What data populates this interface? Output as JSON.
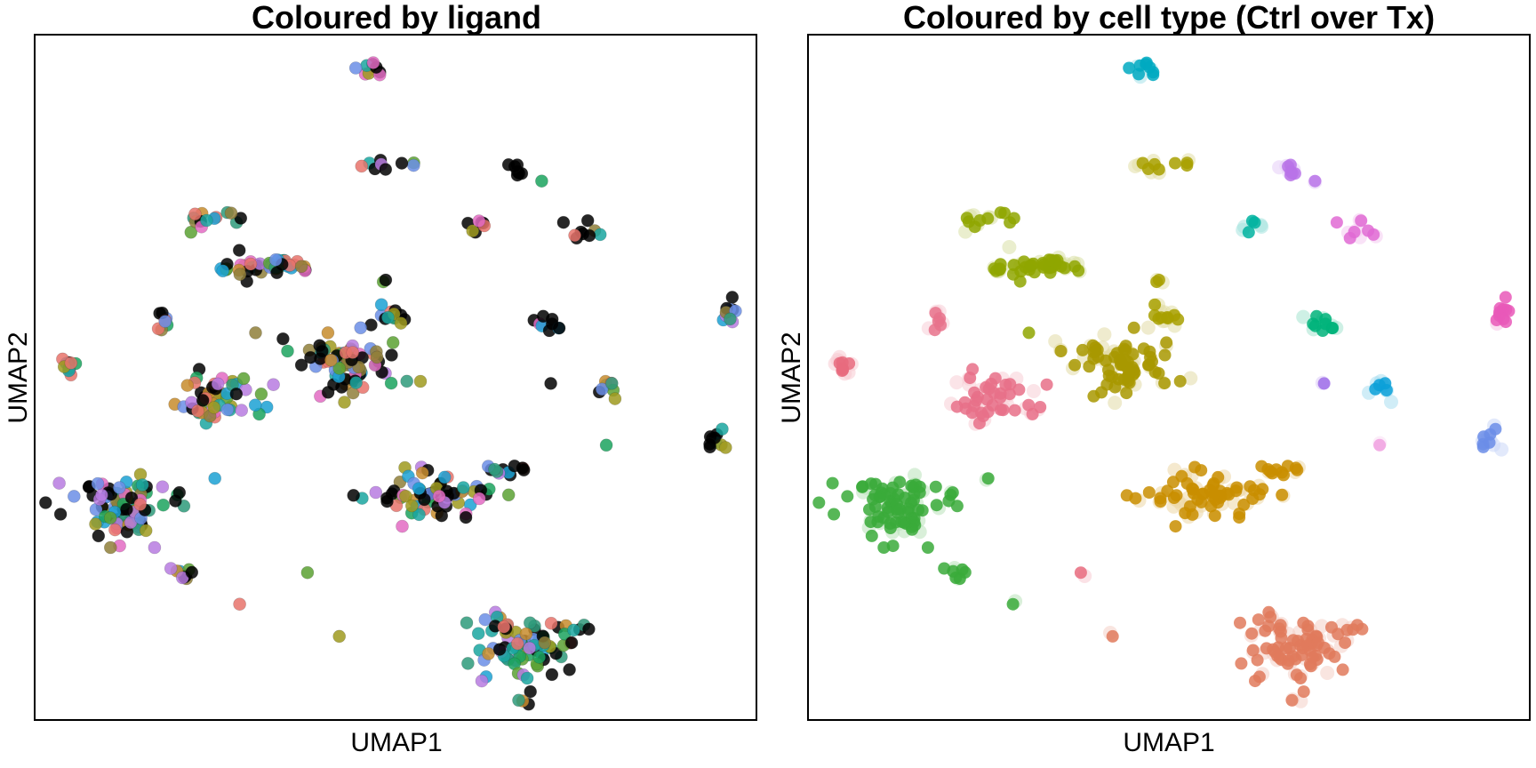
{
  "chart_data": [
    {
      "type": "scatter",
      "title": "Coloured by ligand",
      "xlabel": "UMAP1",
      "ylabel": "UMAP2",
      "xlim": [
        0,
        100
      ],
      "ylim": [
        0,
        100
      ],
      "grid": false,
      "legend": "none",
      "ticks": false,
      "palette": [
        "#e8736b",
        "#c78c2d",
        "#9f9a1f",
        "#5aa132",
        "#1ba35e",
        "#1aa6a0",
        "#1ba1d4",
        "#6b8ee6",
        "#b77be0",
        "#e36bc3",
        "#000000",
        "#8f7f3a",
        "#2e9a7a",
        "#cd7a8f"
      ],
      "clusters": [
        {
          "x": 46.3,
          "y": 95.1,
          "n": 10,
          "sx": 1.3,
          "sy": 0.7,
          "dark": 0.5
        },
        {
          "x": 49.0,
          "y": 81.0,
          "n": 9,
          "sx": 2.2,
          "sy": 0.4,
          "dark": 0.5
        },
        {
          "x": 67.1,
          "y": 80.0,
          "n": 8,
          "sx": 1.0,
          "sy": 0.7,
          "dark": 0.7
        },
        {
          "x": 61.4,
          "y": 71.9,
          "n": 7,
          "sx": 1.2,
          "sy": 0.8,
          "dark": 0.4
        },
        {
          "x": 75.4,
          "y": 71.5,
          "n": 9,
          "sx": 1.4,
          "sy": 0.6,
          "dark": 0.6
        },
        {
          "x": 23.9,
          "y": 73.0,
          "n": 14,
          "sx": 2.0,
          "sy": 0.8,
          "dark": 0.15
        },
        {
          "x": 32.3,
          "y": 66.2,
          "n": 45,
          "sx": 3.2,
          "sy": 0.8,
          "dark": 0.15
        },
        {
          "x": 48.6,
          "y": 64.1,
          "n": 2,
          "sx": 0.1,
          "sy": 0.1,
          "dark": 0.5
        },
        {
          "x": 49.4,
          "y": 59.2,
          "n": 12,
          "sx": 1.0,
          "sy": 0.8,
          "dark": 0.15
        },
        {
          "x": 17.6,
          "y": 58.2,
          "n": 8,
          "sx": 0.5,
          "sy": 1.0,
          "dark": 0.1
        },
        {
          "x": 30.6,
          "y": 56.5,
          "n": 1,
          "sx": 0.1,
          "sy": 0.1,
          "dark": 0.0
        },
        {
          "x": 71.2,
          "y": 57.5,
          "n": 9,
          "sx": 1.0,
          "sy": 0.8,
          "dark": 0.5
        },
        {
          "x": 96.3,
          "y": 59.3,
          "n": 10,
          "sx": 0.7,
          "sy": 0.8,
          "dark": 0.4
        },
        {
          "x": 4.4,
          "y": 51.6,
          "n": 10,
          "sx": 0.6,
          "sy": 0.9,
          "dark": 0.1
        },
        {
          "x": 44.1,
          "y": 51.9,
          "n": 80,
          "sx": 3.5,
          "sy": 2.4,
          "dark": 0.15
        },
        {
          "x": 25.5,
          "y": 47.0,
          "n": 50,
          "sx": 3.0,
          "sy": 1.8,
          "dark": 0.12
        },
        {
          "x": 71.5,
          "y": 49.1,
          "n": 1,
          "sx": 0.1,
          "sy": 0.1,
          "dark": 1.0
        },
        {
          "x": 79.6,
          "y": 48.8,
          "n": 8,
          "sx": 0.8,
          "sy": 1.0,
          "dark": 0.4
        },
        {
          "x": 79.2,
          "y": 40.1,
          "n": 1,
          "sx": 0.1,
          "sy": 0.1,
          "dark": 0.0
        },
        {
          "x": 94.8,
          "y": 40.4,
          "n": 10,
          "sx": 0.8,
          "sy": 1.5,
          "dark": 0.4
        },
        {
          "x": 65.1,
          "y": 36.3,
          "n": 10,
          "sx": 1.6,
          "sy": 0.8,
          "dark": 0.3
        },
        {
          "x": 53.9,
          "y": 32.9,
          "n": 70,
          "sx": 5.0,
          "sy": 1.6,
          "dark": 0.15
        },
        {
          "x": 12.6,
          "y": 31.1,
          "n": 85,
          "sx": 3.5,
          "sy": 2.4,
          "dark": 0.18
        },
        {
          "x": 61.6,
          "y": 32.3,
          "n": 1,
          "sx": 0.1,
          "sy": 0.1,
          "dark": 0.0
        },
        {
          "x": 20.4,
          "y": 21.1,
          "n": 9,
          "sx": 0.8,
          "sy": 0.6,
          "dark": 0.2
        },
        {
          "x": 37.8,
          "y": 21.5,
          "n": 1,
          "sx": 0.1,
          "sy": 0.1,
          "dark": 0.0
        },
        {
          "x": 28.4,
          "y": 16.9,
          "n": 1,
          "sx": 0.1,
          "sy": 0.1,
          "dark": 0.0
        },
        {
          "x": 42.2,
          "y": 12.2,
          "n": 1,
          "sx": 0.1,
          "sy": 0.1,
          "dark": 0.0
        },
        {
          "x": 68.0,
          "y": 11.0,
          "n": 80,
          "sx": 4.0,
          "sy": 2.0,
          "dark": 0.15
        },
        {
          "x": 68.3,
          "y": 5.0,
          "n": 6,
          "sx": 0.6,
          "sy": 2.0,
          "dark": 0.3
        }
      ]
    },
    {
      "type": "scatter",
      "title": "Coloured by cell type (Ctrl over Tx)",
      "xlabel": "UMAP1",
      "ylabel": "UMAP2",
      "xlim": [
        0,
        100
      ],
      "ylim": [
        0,
        100
      ],
      "grid": false,
      "legend": "none",
      "ticks": false,
      "clusters": [
        {
          "x": 46.3,
          "y": 95.1,
          "n": 10,
          "sx": 1.3,
          "sy": 0.7,
          "color": "#00a9c1"
        },
        {
          "x": 49.0,
          "y": 81.0,
          "n": 9,
          "sx": 2.2,
          "sy": 0.4,
          "color": "#a8a000"
        },
        {
          "x": 67.1,
          "y": 80.0,
          "n": 8,
          "sx": 1.0,
          "sy": 0.7,
          "color": "#b873e8"
        },
        {
          "x": 61.4,
          "y": 71.9,
          "n": 7,
          "sx": 1.2,
          "sy": 0.8,
          "color": "#00b3a0"
        },
        {
          "x": 75.4,
          "y": 71.5,
          "n": 9,
          "sx": 1.4,
          "sy": 0.6,
          "color": "#e06ad4"
        },
        {
          "x": 23.9,
          "y": 73.0,
          "n": 14,
          "sx": 2.0,
          "sy": 0.8,
          "color": "#8fa600"
        },
        {
          "x": 32.3,
          "y": 66.2,
          "n": 45,
          "sx": 3.2,
          "sy": 0.8,
          "color": "#8fa600"
        },
        {
          "x": 48.6,
          "y": 64.1,
          "n": 2,
          "sx": 0.1,
          "sy": 0.1,
          "color": "#a8a000"
        },
        {
          "x": 49.4,
          "y": 59.2,
          "n": 12,
          "sx": 1.0,
          "sy": 0.8,
          "color": "#a8a000"
        },
        {
          "x": 17.6,
          "y": 58.2,
          "n": 8,
          "sx": 0.5,
          "sy": 1.0,
          "color": "#e7738c"
        },
        {
          "x": 30.6,
          "y": 56.5,
          "n": 1,
          "sx": 0.1,
          "sy": 0.1,
          "color": "#8fa600"
        },
        {
          "x": 71.2,
          "y": 57.5,
          "n": 9,
          "sx": 1.0,
          "sy": 0.8,
          "color": "#00b37a"
        },
        {
          "x": 96.3,
          "y": 59.3,
          "n": 10,
          "sx": 0.7,
          "sy": 0.8,
          "color": "#e958b8"
        },
        {
          "x": 4.4,
          "y": 51.6,
          "n": 10,
          "sx": 0.6,
          "sy": 0.9,
          "color": "#e76b7e"
        },
        {
          "x": 44.1,
          "y": 51.9,
          "n": 80,
          "sx": 3.5,
          "sy": 2.4,
          "color": "#a89800"
        },
        {
          "x": 25.5,
          "y": 47.0,
          "n": 50,
          "sx": 3.0,
          "sy": 1.8,
          "color": "#e77088"
        },
        {
          "x": 71.5,
          "y": 49.1,
          "n": 1,
          "sx": 0.1,
          "sy": 0.1,
          "color": "#9f6de8"
        },
        {
          "x": 79.6,
          "y": 48.8,
          "n": 8,
          "sx": 0.8,
          "sy": 1.0,
          "color": "#0aa0d8"
        },
        {
          "x": 79.2,
          "y": 40.1,
          "n": 1,
          "sx": 0.1,
          "sy": 0.1,
          "color": "#f0a0e0"
        },
        {
          "x": 94.8,
          "y": 40.4,
          "n": 10,
          "sx": 0.8,
          "sy": 1.5,
          "color": "#6b8de8"
        },
        {
          "x": 65.1,
          "y": 36.3,
          "n": 10,
          "sx": 1.6,
          "sy": 0.8,
          "color": "#c98e00"
        },
        {
          "x": 53.9,
          "y": 32.9,
          "n": 70,
          "sx": 5.0,
          "sy": 1.6,
          "color": "#c98e00"
        },
        {
          "x": 12.6,
          "y": 31.1,
          "n": 85,
          "sx": 3.5,
          "sy": 2.4,
          "color": "#3aaa3a"
        },
        {
          "x": 61.6,
          "y": 32.3,
          "n": 1,
          "sx": 0.1,
          "sy": 0.1,
          "color": "#c98e00"
        },
        {
          "x": 20.4,
          "y": 21.1,
          "n": 9,
          "sx": 0.8,
          "sy": 0.6,
          "color": "#3aaa3a"
        },
        {
          "x": 37.8,
          "y": 21.5,
          "n": 1,
          "sx": 0.1,
          "sy": 0.1,
          "color": "#e76b7e"
        },
        {
          "x": 28.4,
          "y": 16.9,
          "n": 1,
          "sx": 0.1,
          "sy": 0.1,
          "color": "#3aaa3a"
        },
        {
          "x": 42.2,
          "y": 12.2,
          "n": 1,
          "sx": 0.1,
          "sy": 0.1,
          "color": "#e07a5c"
        },
        {
          "x": 68.0,
          "y": 11.0,
          "n": 80,
          "sx": 4.0,
          "sy": 2.0,
          "color": "#e07a5c"
        },
        {
          "x": 68.3,
          "y": 5.0,
          "n": 6,
          "sx": 0.6,
          "sy": 2.0,
          "color": "#e07a5c"
        }
      ]
    }
  ]
}
